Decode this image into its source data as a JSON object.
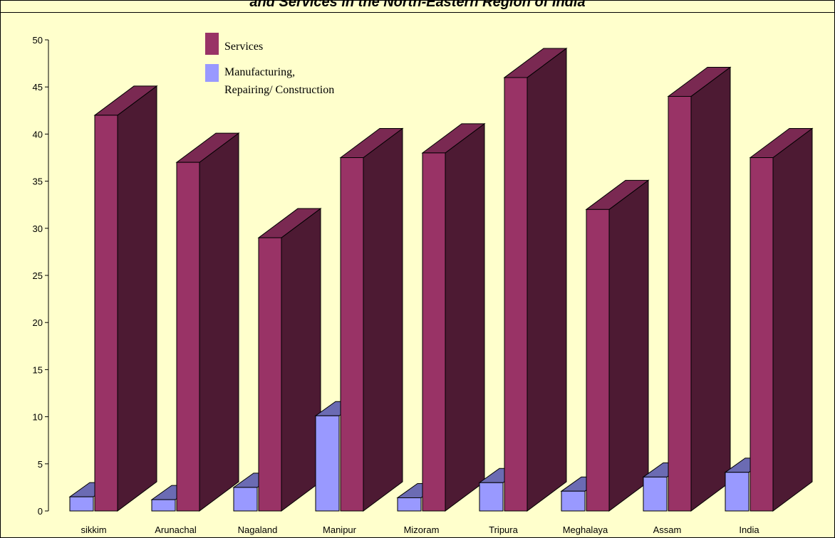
{
  "title": "and Services in the North-Eastern Region of India",
  "colors": {
    "background": "#ffffcc",
    "services_front": "#993366",
    "services_side": "#4d1a33",
    "services_top": "#7a2952",
    "manufacturing_front": "#9999ff",
    "manufacturing_side": "#4d4d80",
    "manufacturing_top": "#6b6bb3"
  },
  "chart_data": {
    "type": "bar",
    "title": "and Services in the North-Eastern Region of India",
    "categories": [
      "sikkim",
      "Arunachal",
      "Nagaland",
      "Manipur",
      "Mizoram",
      "Tripura",
      "Meghalaya",
      "Assam",
      "India"
    ],
    "series": [
      {
        "name": "Services",
        "values": [
          42,
          37,
          29,
          37.5,
          38,
          46,
          32,
          44,
          37.5
        ]
      },
      {
        "name": "Manufacturing,\nRepairing/ Construction",
        "values": [
          1.5,
          1.2,
          2.5,
          10.1,
          1.4,
          3,
          2.1,
          3.6,
          4.1
        ]
      }
    ],
    "legend": {
      "services": "Services",
      "manufacturing_line1": "Manufacturing,",
      "manufacturing_line2": "Repairing/ Construction"
    },
    "ylim": [
      0,
      50
    ],
    "yticks": [
      "0",
      "5",
      "10",
      "15",
      "20",
      "25",
      "30",
      "35",
      "40",
      "45",
      "50"
    ],
    "legend_position": "top-left",
    "grid": false,
    "style": "3d-bar"
  }
}
